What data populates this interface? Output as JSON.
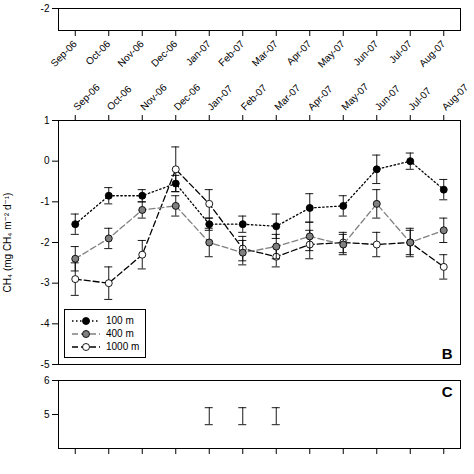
{
  "chart_data": [
    {
      "type": "line",
      "categories": [
        "Sep-06",
        "Oct-06",
        "Nov-06",
        "Dec-06",
        "Jan-07",
        "Feb-07",
        "Mar-07",
        "Apr-07",
        "May-07",
        "Jun-07",
        "Jul-07",
        "Aug-07"
      ],
      "ylim": [
        -3,
        -2
      ],
      "yticks": [
        -2
      ],
      "grid": false
    },
    {
      "type": "line",
      "categories": [
        "Sep-06",
        "Oct-06",
        "Nov-06",
        "Dec-06",
        "Jan-07",
        "Feb-07",
        "Mar-07",
        "Apr-07",
        "May-07",
        "Jun-07",
        "Jul-07",
        "Aug-07"
      ],
      "ylabel": "CH₄ (mg CH₄ m⁻² d⁻¹)",
      "series": [
        {
          "name": "100 m",
          "color": "black",
          "marker": "filled",
          "line_style": "dotted",
          "values": [
            -1.55,
            -0.85,
            -0.85,
            -0.55,
            -1.55,
            -1.55,
            -1.6,
            -1.15,
            -1.1,
            -0.2,
            0.0,
            -0.7
          ],
          "errors": [
            0.25,
            0.2,
            0.15,
            0.2,
            0.15,
            0.2,
            0.3,
            0.35,
            0.25,
            0.35,
            0.2,
            0.25
          ]
        },
        {
          "name": "400 m",
          "color": "gray",
          "marker": "filled",
          "line_style": "dashed",
          "values": [
            -2.4,
            -1.9,
            -1.2,
            -1.1,
            -2.0,
            -2.25,
            -2.1,
            -1.85,
            -2.05,
            -1.05,
            -2.0,
            -1.7
          ],
          "errors": [
            0.3,
            0.25,
            0.2,
            0.25,
            0.35,
            0.3,
            0.3,
            0.35,
            0.25,
            0.35,
            0.3,
            0.3
          ]
        },
        {
          "name": "1000 m",
          "color": "black",
          "marker": "open",
          "line_style": "dashed",
          "values": [
            -2.9,
            -3.0,
            -2.3,
            -0.2,
            -1.05,
            -2.15,
            -2.35,
            -2.05,
            -2.0,
            -2.05,
            -2.0,
            -2.6
          ],
          "errors": [
            0.4,
            0.4,
            0.35,
            0.55,
            0.35,
            0.3,
            0.25,
            0.35,
            0.25,
            0.3,
            0.35,
            0.3
          ]
        }
      ],
      "ylim": [
        -5,
        1
      ],
      "yticks": [
        -5,
        -4,
        -3,
        -2,
        -1,
        0,
        1
      ],
      "annotations": [
        "B"
      ],
      "legend": "lower left",
      "grid": false
    },
    {
      "type": "errorbar",
      "categories": [
        "Sep-06",
        "Oct-06",
        "Nov-06",
        "Dec-06",
        "Jan-07",
        "Feb-07",
        "Mar-07",
        "Apr-07",
        "May-07",
        "Jun-07",
        "Jul-07",
        "Aug-07"
      ],
      "series": [
        {
          "color": "black",
          "values": [
            null,
            null,
            null,
            null,
            4.7,
            4.7,
            4.7,
            null,
            null,
            null,
            null,
            null
          ],
          "errors_lower": [
            null,
            null,
            null,
            null,
            0.0,
            0.0,
            0.0,
            null,
            null,
            null,
            null,
            null
          ],
          "errors_upper": [
            null,
            null,
            null,
            null,
            0.5,
            0.5,
            0.5,
            null,
            null,
            null,
            null,
            null
          ]
        }
      ],
      "ylim": [
        4,
        6
      ],
      "yticks": [
        5,
        6
      ],
      "tick_labels": "y",
      "annotations": [
        "C"
      ],
      "grid": false
    }
  ]
}
